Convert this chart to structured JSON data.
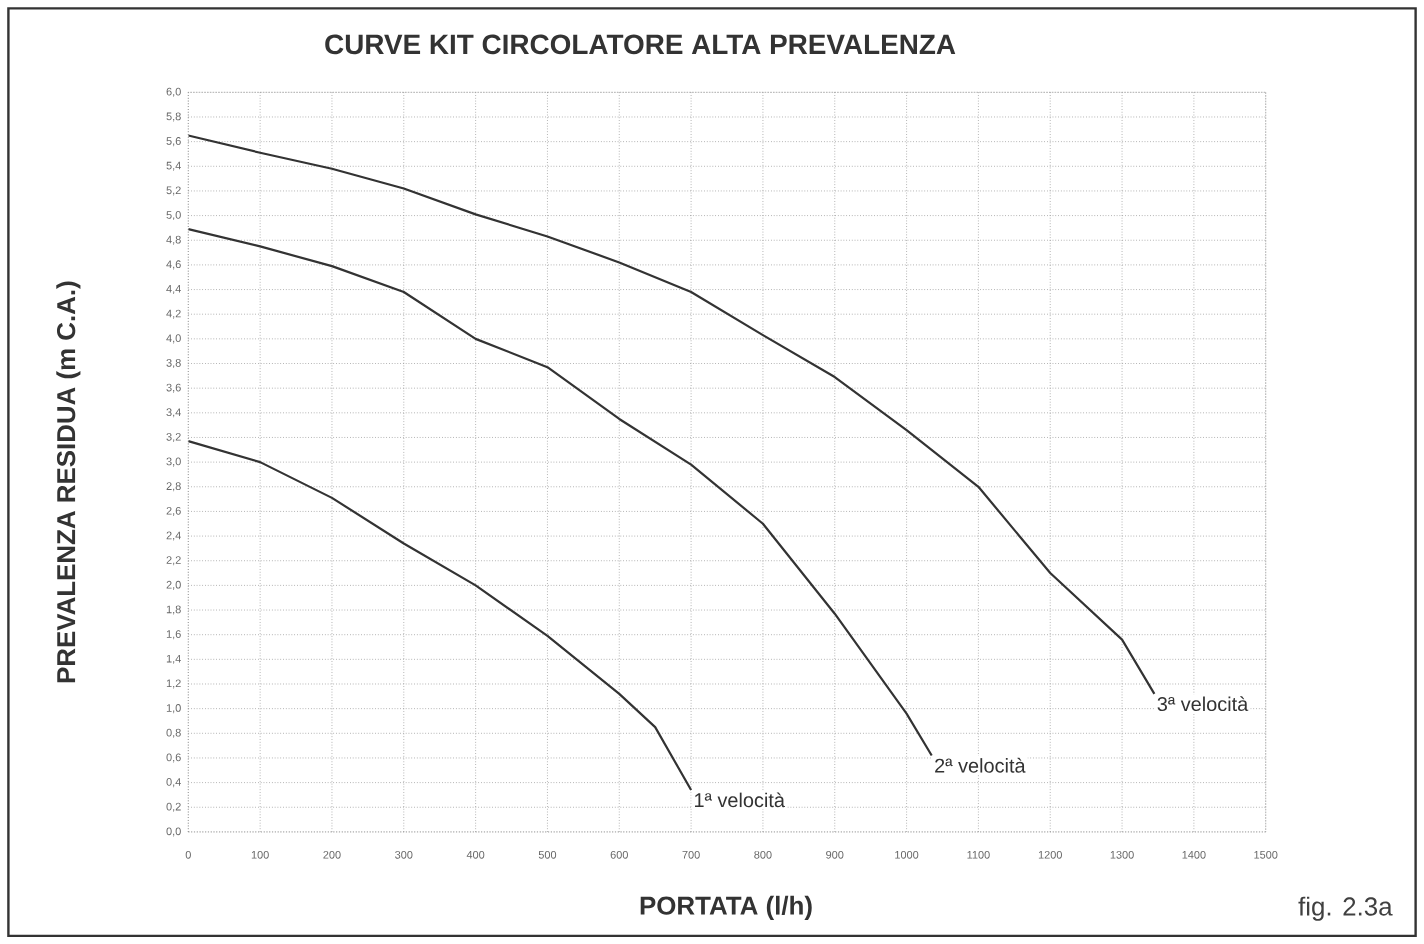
{
  "chart_data": {
    "type": "line",
    "title": "CURVE KIT CIRCOLATORE ALTA PREVALENZA",
    "xlabel": "PORTATA (l/h)",
    "ylabel": "PREVALENZA RESIDUA (m C.A.)",
    "annotations": [
      "fig. 2.3a"
    ],
    "xlim": [
      0,
      1500
    ],
    "ylim": [
      0,
      6
    ],
    "xticks": [
      0,
      100,
      200,
      300,
      400,
      500,
      600,
      700,
      800,
      900,
      1000,
      1100,
      1200,
      1300,
      1400,
      1500
    ],
    "yticks": [
      {
        "value": 0,
        "label": "0,0"
      },
      {
        "value": 0.2,
        "label": "0,2"
      },
      {
        "value": 0.4,
        "label": "0,4"
      },
      {
        "value": 0.6,
        "label": "0,6"
      },
      {
        "value": 0.8,
        "label": "0,8"
      },
      {
        "value": 1.0,
        "label": "1,0"
      },
      {
        "value": 1.2,
        "label": "1,2"
      },
      {
        "value": 1.4,
        "label": "1,4"
      },
      {
        "value": 1.6,
        "label": "1,6"
      },
      {
        "value": 1.8,
        "label": "1,8"
      },
      {
        "value": 2.0,
        "label": "2,0"
      },
      {
        "value": 2.2,
        "label": "2,2"
      },
      {
        "value": 2.4,
        "label": "2,4"
      },
      {
        "value": 2.6,
        "label": "2,6"
      },
      {
        "value": 2.8,
        "label": "2,8"
      },
      {
        "value": 3.0,
        "label": "3,0"
      },
      {
        "value": 3.2,
        "label": "3,2"
      },
      {
        "value": 3.4,
        "label": "3,4"
      },
      {
        "value": 3.6,
        "label": "3,6"
      },
      {
        "value": 3.8,
        "label": "3,8"
      },
      {
        "value": 4.0,
        "label": "4,0"
      },
      {
        "value": 4.2,
        "label": "4,2"
      },
      {
        "value": 4.4,
        "label": "4,4"
      },
      {
        "value": 4.6,
        "label": "4,6"
      },
      {
        "value": 4.8,
        "label": "4,8"
      },
      {
        "value": 5.0,
        "label": "5,0"
      },
      {
        "value": 5.2,
        "label": "5,2"
      },
      {
        "value": 5.4,
        "label": "5,4"
      },
      {
        "value": 5.6,
        "label": "5,6"
      },
      {
        "value": 5.8,
        "label": "5,8"
      },
      {
        "value": 6.0,
        "label": "6,0"
      }
    ],
    "grid": true,
    "marker": "none",
    "line_style": "solid",
    "series": [
      {
        "name": "1ª velocità",
        "color": "#333333",
        "x": [
          0,
          100,
          200,
          300,
          400,
          500,
          600,
          650,
          700
        ],
        "values": [
          3.17,
          3.0,
          2.71,
          2.34,
          2.0,
          1.59,
          1.12,
          0.85,
          0.34
        ]
      },
      {
        "name": "2ª velocità",
        "color": "#333333",
        "x": [
          0,
          100,
          200,
          300,
          400,
          500,
          600,
          700,
          800,
          900,
          1000,
          1035
        ],
        "values": [
          4.89,
          4.75,
          4.59,
          4.38,
          4.0,
          3.77,
          3.35,
          2.98,
          2.5,
          1.77,
          0.96,
          0.62
        ]
      },
      {
        "name": "3ª velocità",
        "color": "#333333",
        "x": [
          0,
          100,
          200,
          300,
          400,
          500,
          600,
          700,
          800,
          900,
          1000,
          1100,
          1200,
          1300,
          1345
        ],
        "values": [
          5.65,
          5.51,
          5.38,
          5.22,
          5.01,
          4.83,
          4.62,
          4.38,
          4.03,
          3.69,
          3.26,
          2.8,
          2.1,
          1.56,
          1.12
        ]
      }
    ]
  }
}
